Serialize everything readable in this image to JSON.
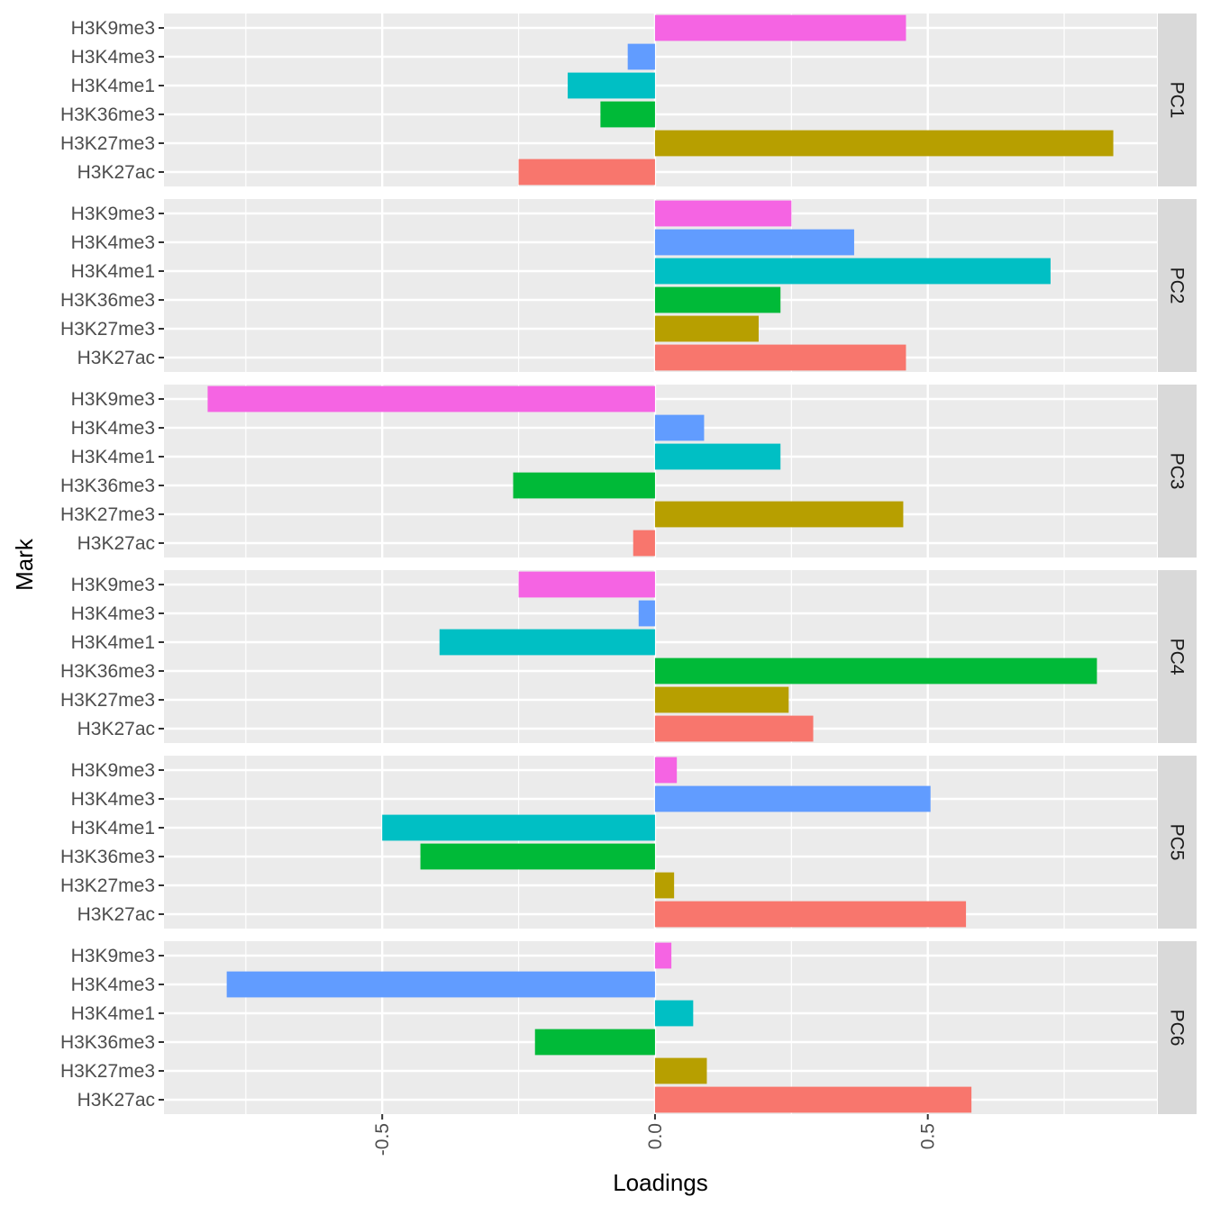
{
  "chart_data": {
    "type": "bar",
    "orientation": "horizontal",
    "facet": "rows",
    "title": "",
    "xlabel": "Loadings",
    "ylabel": "Mark",
    "xlim": [
      -0.9,
      0.92
    ],
    "x_ticks": [
      -0.5,
      0.0,
      0.5
    ],
    "x_tick_labels": [
      "-0.5",
      "0.0",
      "0.5"
    ],
    "categories": [
      "H3K9me3",
      "H3K4me3",
      "H3K4me1",
      "H3K36me3",
      "H3K27me3",
      "H3K27ac"
    ],
    "colors": {
      "H3K27ac": "#F8766D",
      "H3K27me3": "#B79F00",
      "H3K36me3": "#00BA38",
      "H3K4me1": "#00BFC4",
      "H3K4me3": "#619CFF",
      "H3K9me3": "#F564E3"
    },
    "grid": true,
    "legend": "none",
    "panel_background": "#EBEBEB",
    "strip_background": "#D9D9D9",
    "panels": [
      {
        "label": "PC1",
        "values": [
          0.46,
          -0.05,
          -0.16,
          -0.1,
          0.84,
          -0.25
        ]
      },
      {
        "label": "PC2",
        "values": [
          0.25,
          0.365,
          0.725,
          0.23,
          0.19,
          0.46
        ]
      },
      {
        "label": "PC3",
        "values": [
          -0.82,
          0.09,
          0.23,
          -0.26,
          0.455,
          -0.04
        ]
      },
      {
        "label": "PC4",
        "values": [
          -0.25,
          -0.03,
          -0.395,
          0.81,
          0.245,
          0.29
        ]
      },
      {
        "label": "PC5",
        "values": [
          0.04,
          0.505,
          -0.5,
          -0.43,
          0.035,
          0.57
        ]
      },
      {
        "label": "PC6",
        "values": [
          0.03,
          -0.785,
          0.07,
          -0.22,
          0.095,
          0.58
        ]
      }
    ]
  }
}
